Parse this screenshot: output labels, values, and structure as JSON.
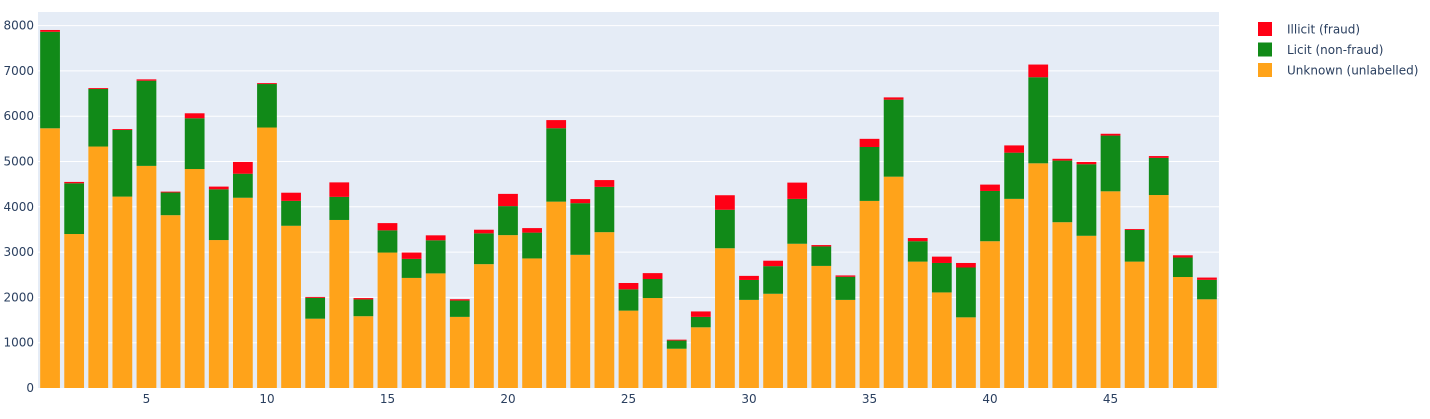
{
  "chart_data": {
    "type": "bar",
    "barmode": "stack",
    "x": [
      1,
      2,
      3,
      4,
      5,
      6,
      7,
      8,
      9,
      10,
      11,
      12,
      13,
      14,
      15,
      16,
      17,
      18,
      19,
      20,
      21,
      22,
      23,
      24,
      25,
      26,
      27,
      28,
      29,
      30,
      31,
      32,
      33,
      34,
      35,
      36,
      37,
      38,
      39,
      40,
      41,
      42,
      43,
      44,
      45,
      46,
      47,
      48,
      49
    ],
    "series": [
      {
        "name": "Unknown (unlabelled)",
        "color": "#FFA31A",
        "values": [
          5733,
          3399,
          5330,
          4225,
          4903,
          3815,
          4834,
          3266,
          4200,
          5750,
          3581,
          1530,
          3709,
          1585,
          2990,
          2430,
          2530,
          1570,
          2734,
          3375,
          2860,
          4114,
          2940,
          3440,
          1708,
          1986,
          867,
          1340,
          3085,
          1945,
          2080,
          3184,
          2695,
          1945,
          4130,
          4665,
          2790,
          2110,
          1560,
          3240,
          4175,
          4960,
          3660,
          3360,
          4342,
          2790,
          4260,
          2450,
          1958
        ],
        "bar_color_note": "stacked bottom"
      },
      {
        "name": "Licit (non-fraud)",
        "color": "#118A18",
        "values": [
          2130,
          1120,
          1270,
          1470,
          1880,
          500,
          1120,
          1120,
          530,
          960,
          550,
          460,
          510,
          370,
          490,
          420,
          730,
          360,
          680,
          640,
          570,
          1620,
          1140,
          1000,
          470,
          420,
          180,
          230,
          850,
          440,
          610,
          990,
          430,
          510,
          1190,
          1700,
          450,
          650,
          1100,
          1110,
          1020,
          1900,
          1360,
          1580,
          1230,
          700,
          820,
          430,
          430
        ]
      },
      {
        "name": "Illicit (fraud)",
        "color": "#FF0015",
        "values": [
          40,
          30,
          20,
          20,
          30,
          20,
          110,
          60,
          260,
          20,
          180,
          20,
          320,
          30,
          160,
          140,
          110,
          30,
          80,
          270,
          100,
          180,
          90,
          150,
          140,
          130,
          20,
          120,
          320,
          90,
          120,
          360,
          30,
          30,
          180,
          50,
          70,
          140,
          100,
          140,
          160,
          280,
          40,
          50,
          40,
          20,
          40,
          50,
          50
        ]
      }
    ],
    "ylim": [
      0,
      8300
    ],
    "y_ticks": [
      0,
      1000,
      2000,
      3000,
      4000,
      5000,
      6000,
      7000,
      8000
    ],
    "x_ticks": [
      5,
      10,
      15,
      20,
      25,
      30,
      35,
      40,
      45
    ],
    "xlabel": "",
    "ylabel": "",
    "title": "",
    "grid": true,
    "legend_placement": "top-right",
    "legend_order": [
      "Illicit (fraud)",
      "Licit (non-fraud)",
      "Unknown (unlabelled)"
    ],
    "plot_bgcolor": "#E5ECF6",
    "grid_color": "#FFFFFF",
    "text_color": "#2A3F5F"
  }
}
